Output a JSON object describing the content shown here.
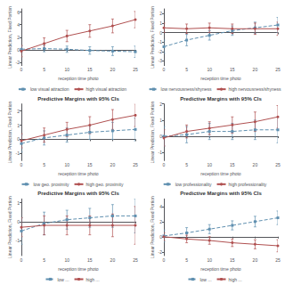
{
  "chart_data": [
    {
      "type": "line",
      "x_label": "reception time photo",
      "y_label": "Linear Prediction, Fixed Portion",
      "x": [
        0,
        5,
        10,
        15,
        20,
        25
      ],
      "xlim": [
        0,
        25
      ],
      "xticks": [
        0,
        5,
        10,
        15,
        20,
        25
      ],
      "ylim": [
        -2.5,
        6.5
      ],
      "yticks": [
        -2,
        0,
        2,
        4,
        6
      ],
      "grid": false,
      "legend": "bottom",
      "series": [
        {
          "name": "low visual attraction",
          "color": "#6090b0",
          "marker": "square",
          "line_style": "dashed",
          "values": [
            0.1,
            0.2,
            0.1,
            -0.1,
            -0.2,
            -0.3
          ],
          "yerr": [
            0.5,
            0.5,
            0.5,
            0.6,
            0.7,
            0.9
          ]
        },
        {
          "name": "high visual attraction",
          "color": "#b05050",
          "marker": "circle",
          "line_style": "solid",
          "values": [
            -0.2,
            1.0,
            2.2,
            3.0,
            3.8,
            4.8
          ],
          "yerr": [
            0.9,
            0.9,
            0.9,
            1.0,
            1.1,
            1.3
          ]
        }
      ]
    },
    {
      "type": "line",
      "x_label": "reception time photo",
      "y_label": "Linear Prediction, Fixed Portion",
      "x": [
        0,
        5,
        10,
        15,
        20,
        25
      ],
      "xlim": [
        0,
        25
      ],
      "xticks": [
        0,
        5,
        10,
        15,
        20,
        25
      ],
      "ylim": [
        -3.5,
        2.5
      ],
      "yticks": [
        -3,
        -2,
        -1,
        0,
        1,
        2
      ],
      "grid": false,
      "legend": "bottom",
      "series": [
        {
          "name": "low nervousness/shyness",
          "color": "#6090b0",
          "marker": "square",
          "line_style": "dashed",
          "values": [
            -1.5,
            -0.8,
            -0.3,
            0.2,
            0.5,
            0.8
          ],
          "yerr": [
            0.7,
            0.6,
            0.5,
            0.5,
            0.6,
            0.8
          ]
        },
        {
          "name": "high nervousness/shyness",
          "color": "#b05050",
          "marker": "circle",
          "line_style": "solid",
          "values": [
            0.5,
            0.4,
            0.5,
            0.4,
            0.4,
            0.4
          ],
          "yerr": [
            0.5,
            0.5,
            0.5,
            0.5,
            0.6,
            0.7
          ]
        }
      ]
    },
    {
      "type": "line",
      "title": "Predictive Margins with 95% CIs",
      "x_label": "reception time photo",
      "y_label": "Linear Prediction, Fixed Portion",
      "x": [
        0,
        5,
        10,
        15,
        20,
        25
      ],
      "xlim": [
        0,
        25
      ],
      "xticks": [
        0,
        5,
        10,
        15,
        20,
        25
      ],
      "ylim": [
        -1.5,
        2.5
      ],
      "yticks": [
        -1,
        0,
        1,
        2
      ],
      "grid": false,
      "legend": "bottom",
      "series": [
        {
          "name": "low geo. proximity",
          "color": "#6090b0",
          "marker": "square",
          "line_style": "dashed",
          "values": [
            -0.3,
            0.1,
            0.3,
            0.5,
            0.6,
            0.7
          ],
          "yerr": [
            0.6,
            0.5,
            0.5,
            0.5,
            0.6,
            0.8
          ]
        },
        {
          "name": "high geo. proximity",
          "color": "#b05050",
          "marker": "circle",
          "line_style": "solid",
          "values": [
            -0.1,
            0.3,
            0.7,
            1.0,
            1.4,
            1.7
          ],
          "yerr": [
            0.5,
            0.5,
            0.5,
            0.6,
            0.7,
            0.8
          ]
        }
      ]
    },
    {
      "type": "line",
      "title": "Predictive Margins with 95% CIs",
      "x_label": "reception time photo",
      "y_label": "Linear Prediction, Fixed Portion",
      "x": [
        0,
        5,
        10,
        15,
        20,
        25
      ],
      "xlim": [
        0,
        25
      ],
      "xticks": [
        0,
        5,
        10,
        15,
        20,
        25
      ],
      "ylim": [
        -1.5,
        2.0
      ],
      "yticks": [
        -1,
        0,
        1,
        2
      ],
      "grid": false,
      "legend": "bottom",
      "series": [
        {
          "name": "low professionality",
          "color": "#6090b0",
          "marker": "square",
          "line_style": "dashed",
          "values": [
            0.0,
            0.1,
            0.3,
            0.3,
            0.4,
            0.4
          ],
          "yerr": [
            0.6,
            0.5,
            0.5,
            0.5,
            0.6,
            0.8
          ]
        },
        {
          "name": "high professionality",
          "color": "#b05050",
          "marker": "circle",
          "line_style": "solid",
          "values": [
            -0.1,
            0.3,
            0.5,
            0.7,
            0.9,
            1.2
          ],
          "yerr": [
            0.5,
            0.4,
            0.4,
            0.5,
            0.6,
            0.7
          ]
        }
      ]
    },
    {
      "type": "line",
      "title": "Predictive Margins with 95% CIs",
      "x_label": "reception time photo",
      "y_label": "Linear Prediction, Fixed Portion",
      "x": [
        0,
        5,
        10,
        15,
        20,
        25
      ],
      "xlim": [
        0,
        25
      ],
      "xticks": [
        0,
        5,
        10,
        15,
        20,
        25
      ],
      "ylim": [
        -1.8,
        1.2
      ],
      "yticks": [
        -1,
        0,
        1
      ],
      "grid": false,
      "legend": "bottom",
      "series": [
        {
          "name": "low ...",
          "color": "#6090b0",
          "marker": "square",
          "line_style": "dashed",
          "values": [
            -0.5,
            -0.1,
            0.1,
            0.2,
            0.3,
            0.3
          ],
          "yerr": [
            0.7,
            0.6,
            0.5,
            0.5,
            0.6,
            0.9
          ]
        },
        {
          "name": "high ...",
          "color": "#b05050",
          "marker": "circle",
          "line_style": "solid",
          "values": [
            -0.3,
            -0.2,
            -0.2,
            -0.2,
            -0.2,
            -0.2
          ],
          "yerr": [
            0.5,
            0.5,
            0.5,
            0.5,
            0.6,
            1.0
          ]
        }
      ]
    },
    {
      "type": "line",
      "title": "Predictive Margins with 95% CIs",
      "x_label": "reception time photo",
      "y_label": "Linear Prediction, Fixed Portion",
      "x": [
        0,
        5,
        10,
        15,
        20,
        25
      ],
      "xlim": [
        0,
        25
      ],
      "xticks": [
        0,
        5,
        10,
        15,
        20,
        25
      ],
      "ylim": [
        -2.5,
        5.0
      ],
      "yticks": [
        -2,
        0,
        2,
        4
      ],
      "grid": false,
      "legend": "bottom",
      "series": [
        {
          "name": "low ...",
          "color": "#6090b0",
          "marker": "square",
          "line_style": "dashed",
          "values": [
            0.1,
            0.5,
            1.0,
            1.5,
            2.0,
            2.5
          ],
          "yerr": [
            0.8,
            0.7,
            0.6,
            0.6,
            0.7,
            0.9
          ]
        },
        {
          "name": "high ...",
          "color": "#b05050",
          "marker": "circle",
          "line_style": "solid",
          "values": [
            0.0,
            -0.3,
            -0.5,
            -0.8,
            -1.0,
            -1.2
          ],
          "yerr": [
            0.5,
            0.5,
            0.5,
            0.5,
            0.6,
            0.8
          ]
        }
      ]
    }
  ]
}
